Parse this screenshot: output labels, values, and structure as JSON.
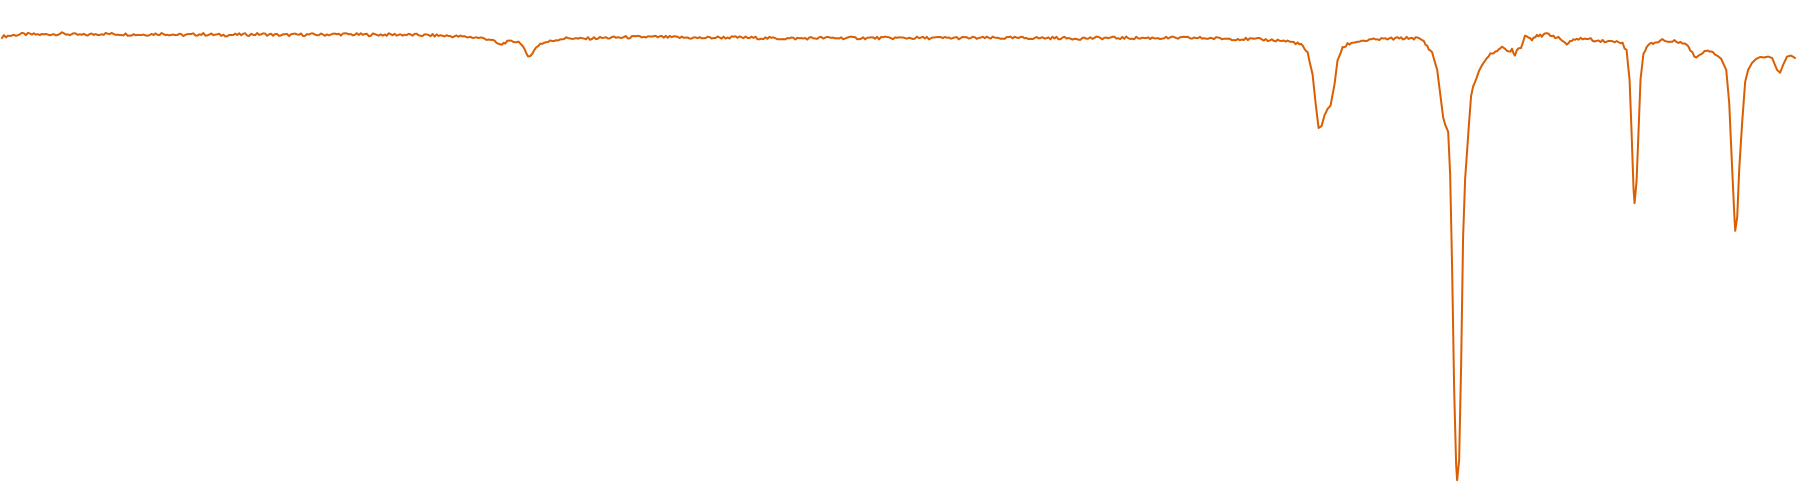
{
  "chart_data": {
    "type": "line",
    "title": "",
    "xlabel": "",
    "ylabel": "",
    "xlim": [
      0,
      1800
    ],
    "ylim": [
      0,
      1
    ],
    "grid": false,
    "legend": "none",
    "series": [
      {
        "color": "#d95f02",
        "points": [
          [
            0,
            0.94
          ],
          [
            20,
            0.945
          ],
          [
            40,
            0.944
          ],
          [
            60,
            0.946
          ],
          [
            80,
            0.943
          ],
          [
            100,
            0.946
          ],
          [
            120,
            0.945
          ],
          [
            140,
            0.944
          ],
          [
            160,
            0.946
          ],
          [
            180,
            0.943
          ],
          [
            200,
            0.945
          ],
          [
            220,
            0.943
          ],
          [
            240,
            0.944
          ],
          [
            260,
            0.945
          ],
          [
            280,
            0.943
          ],
          [
            300,
            0.944
          ],
          [
            320,
            0.944
          ],
          [
            340,
            0.945
          ],
          [
            360,
            0.944
          ],
          [
            380,
            0.944
          ],
          [
            400,
            0.944
          ],
          [
            420,
            0.943
          ],
          [
            440,
            0.942
          ],
          [
            460,
            0.94
          ],
          [
            470,
            0.939
          ],
          [
            480,
            0.937
          ],
          [
            490,
            0.934
          ],
          [
            500,
            0.922
          ],
          [
            505,
            0.928
          ],
          [
            515,
            0.93
          ],
          [
            520,
            0.928
          ],
          [
            525,
            0.908
          ],
          [
            528,
            0.898
          ],
          [
            532,
            0.903
          ],
          [
            536,
            0.918
          ],
          [
            540,
            0.925
          ],
          [
            550,
            0.93
          ],
          [
            560,
            0.935
          ],
          [
            570,
            0.937
          ],
          [
            580,
            0.935
          ],
          [
            600,
            0.937
          ],
          [
            620,
            0.938
          ],
          [
            640,
            0.939
          ],
          [
            660,
            0.939
          ],
          [
            680,
            0.938
          ],
          [
            700,
            0.937
          ],
          [
            720,
            0.938
          ],
          [
            740,
            0.938
          ],
          [
            760,
            0.937
          ],
          [
            780,
            0.936
          ],
          [
            800,
            0.936
          ],
          [
            820,
            0.937
          ],
          [
            840,
            0.937
          ],
          [
            860,
            0.937
          ],
          [
            880,
            0.937
          ],
          [
            900,
            0.937
          ],
          [
            920,
            0.937
          ],
          [
            940,
            0.937
          ],
          [
            960,
            0.937
          ],
          [
            980,
            0.937
          ],
          [
            1000,
            0.937
          ],
          [
            1020,
            0.937
          ],
          [
            1040,
            0.937
          ],
          [
            1060,
            0.937
          ],
          [
            1080,
            0.936
          ],
          [
            1100,
            0.937
          ],
          [
            1120,
            0.937
          ],
          [
            1140,
            0.937
          ],
          [
            1160,
            0.937
          ],
          [
            1180,
            0.937
          ],
          [
            1200,
            0.937
          ],
          [
            1220,
            0.936
          ],
          [
            1240,
            0.935
          ],
          [
            1260,
            0.934
          ],
          [
            1280,
            0.932
          ],
          [
            1290,
            0.93
          ],
          [
            1300,
            0.926
          ],
          [
            1305,
            0.92
          ],
          [
            1310,
            0.905
          ],
          [
            1315,
            0.86
          ],
          [
            1318,
            0.8
          ],
          [
            1321,
            0.748
          ],
          [
            1324,
            0.752
          ],
          [
            1327,
            0.775
          ],
          [
            1330,
            0.788
          ],
          [
            1333,
            0.795
          ],
          [
            1337,
            0.84
          ],
          [
            1340,
            0.89
          ],
          [
            1345,
            0.915
          ],
          [
            1350,
            0.924
          ],
          [
            1360,
            0.93
          ],
          [
            1380,
            0.934
          ],
          [
            1400,
            0.936
          ],
          [
            1415,
            0.937
          ],
          [
            1420,
            0.936
          ],
          [
            1425,
            0.933
          ],
          [
            1430,
            0.92
          ],
          [
            1435,
            0.905
          ],
          [
            1440,
            0.87
          ],
          [
            1443,
            0.82
          ],
          [
            1446,
            0.77
          ],
          [
            1448,
            0.755
          ],
          [
            1451,
            0.74
          ],
          [
            1453,
            0.65
          ],
          [
            1455,
            0.45
          ],
          [
            1457,
            0.2
          ],
          [
            1459,
            0.04
          ],
          [
            1460,
            0.008
          ],
          [
            1462,
            0.05
          ],
          [
            1464,
            0.25
          ],
          [
            1466,
            0.52
          ],
          [
            1468,
            0.64
          ],
          [
            1470,
            0.7
          ],
          [
            1472,
            0.76
          ],
          [
            1474,
            0.815
          ],
          [
            1476,
            0.835
          ],
          [
            1479,
            0.85
          ],
          [
            1482,
            0.868
          ],
          [
            1485,
            0.88
          ],
          [
            1490,
            0.895
          ],
          [
            1495,
            0.905
          ],
          [
            1500,
            0.912
          ],
          [
            1505,
            0.916
          ],
          [
            1508,
            0.913
          ],
          [
            1512,
            0.908
          ],
          [
            1515,
            0.914
          ],
          [
            1518,
            0.9
          ],
          [
            1520,
            0.912
          ],
          [
            1524,
            0.918
          ],
          [
            1528,
            0.942
          ],
          [
            1535,
            0.935
          ],
          [
            1540,
            0.944
          ],
          [
            1545,
            0.94
          ],
          [
            1550,
            0.946
          ],
          [
            1555,
            0.943
          ],
          [
            1560,
            0.938
          ],
          [
            1565,
            0.933
          ],
          [
            1570,
            0.924
          ],
          [
            1575,
            0.93
          ],
          [
            1580,
            0.936
          ],
          [
            1590,
            0.935
          ],
          [
            1600,
            0.932
          ],
          [
            1610,
            0.93
          ],
          [
            1616,
            0.929
          ],
          [
            1622,
            0.931
          ],
          [
            1626,
            0.925
          ],
          [
            1630,
            0.91
          ],
          [
            1633,
            0.85
          ],
          [
            1635,
            0.74
          ],
          [
            1637,
            0.62
          ],
          [
            1638,
            0.59
          ],
          [
            1640,
            0.635
          ],
          [
            1642,
            0.74
          ],
          [
            1644,
            0.85
          ],
          [
            1647,
            0.905
          ],
          [
            1650,
            0.918
          ],
          [
            1655,
            0.926
          ],
          [
            1660,
            0.928
          ],
          [
            1666,
            0.934
          ],
          [
            1670,
            0.929
          ],
          [
            1676,
            0.93
          ],
          [
            1682,
            0.929
          ],
          [
            1688,
            0.928
          ],
          [
            1692,
            0.918
          ],
          [
            1696,
            0.905
          ],
          [
            1700,
            0.896
          ],
          [
            1705,
            0.905
          ],
          [
            1710,
            0.912
          ],
          [
            1715,
            0.91
          ],
          [
            1720,
            0.902
          ],
          [
            1725,
            0.893
          ],
          [
            1730,
            0.87
          ],
          [
            1733,
            0.8
          ],
          [
            1736,
            0.66
          ],
          [
            1738,
            0.57
          ],
          [
            1739,
            0.532
          ],
          [
            1741,
            0.56
          ],
          [
            1743,
            0.66
          ],
          [
            1746,
            0.76
          ],
          [
            1749,
            0.845
          ],
          [
            1752,
            0.87
          ],
          [
            1756,
            0.885
          ],
          [
            1760,
            0.893
          ],
          [
            1764,
            0.897
          ],
          [
            1768,
            0.896
          ],
          [
            1772,
            0.898
          ],
          [
            1776,
            0.895
          ],
          [
            1779,
            0.88
          ],
          [
            1781,
            0.87
          ],
          [
            1784,
            0.864
          ],
          [
            1787,
            0.88
          ],
          [
            1791,
            0.898
          ],
          [
            1795,
            0.9
          ],
          [
            1799,
            0.895
          ]
        ]
      }
    ]
  }
}
